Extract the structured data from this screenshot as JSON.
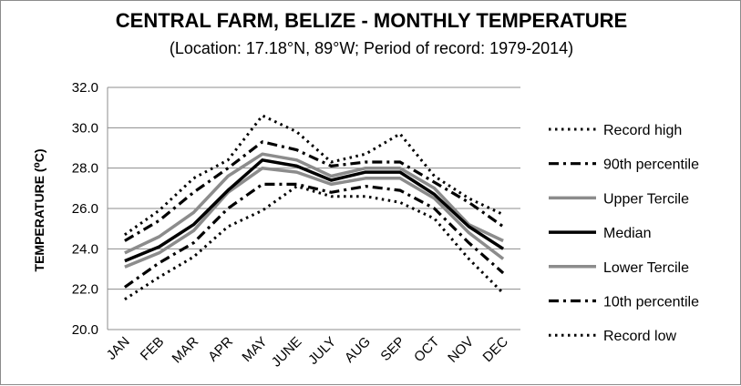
{
  "chart_data": {
    "type": "line",
    "title": "CENTRAL FARM, BELIZE - MONTHLY TEMPERATURE",
    "subtitle": "(Location: 17.18°N, 89°W; Period of record: 1979-2014)",
    "xlabel": "",
    "ylabel": "TEMPERATURE (⁰C)",
    "ylim": [
      20.0,
      32.0
    ],
    "yticks": [
      "20.0",
      "22.0",
      "24.0",
      "26.0",
      "28.0",
      "30.0",
      "32.0"
    ],
    "grid": true,
    "legend_position": "right",
    "categories": [
      "JAN",
      "FEB",
      "MAR",
      "APR",
      "MAY",
      "JUNE",
      "JULY",
      "AUG",
      "SEP",
      "OCT",
      "NOV",
      "DEC"
    ],
    "series": [
      {
        "name": "Record high",
        "style": "dotted",
        "color": "#000000",
        "values": [
          24.7,
          25.9,
          27.5,
          28.4,
          30.6,
          29.8,
          28.3,
          28.7,
          29.7,
          27.6,
          26.5,
          25.7
        ]
      },
      {
        "name": "90th percentile",
        "style": "dashdot",
        "color": "#000000",
        "values": [
          24.4,
          25.4,
          26.8,
          28.0,
          29.3,
          28.9,
          28.1,
          28.3,
          28.3,
          27.3,
          26.3,
          25.1
        ]
      },
      {
        "name": "Upper Tercile",
        "style": "solid",
        "color": "#8c8c8c",
        "values": [
          23.8,
          24.6,
          25.8,
          27.6,
          28.7,
          28.4,
          27.6,
          28.0,
          28.0,
          27.0,
          25.2,
          24.4
        ]
      },
      {
        "name": "Median",
        "style": "solid",
        "color": "#000000",
        "values": [
          23.4,
          24.1,
          25.2,
          26.9,
          28.4,
          28.1,
          27.4,
          27.8,
          27.8,
          26.7,
          25.1,
          24.0
        ]
      },
      {
        "name": "Lower Tercile",
        "style": "solid",
        "color": "#8c8c8c",
        "values": [
          23.1,
          23.8,
          24.9,
          26.8,
          28.0,
          27.8,
          27.2,
          27.5,
          27.5,
          26.5,
          24.8,
          23.5
        ]
      },
      {
        "name": "10th percentile",
        "style": "dashdot",
        "color": "#000000",
        "values": [
          22.1,
          23.3,
          24.3,
          26.0,
          27.2,
          27.2,
          26.8,
          27.1,
          26.9,
          26.0,
          24.3,
          22.8
        ]
      },
      {
        "name": "Record low",
        "style": "dotted",
        "color": "#000000",
        "values": [
          21.5,
          22.6,
          23.6,
          25.1,
          25.9,
          27.1,
          26.6,
          26.6,
          26.3,
          25.5,
          23.5,
          21.8
        ]
      }
    ]
  }
}
